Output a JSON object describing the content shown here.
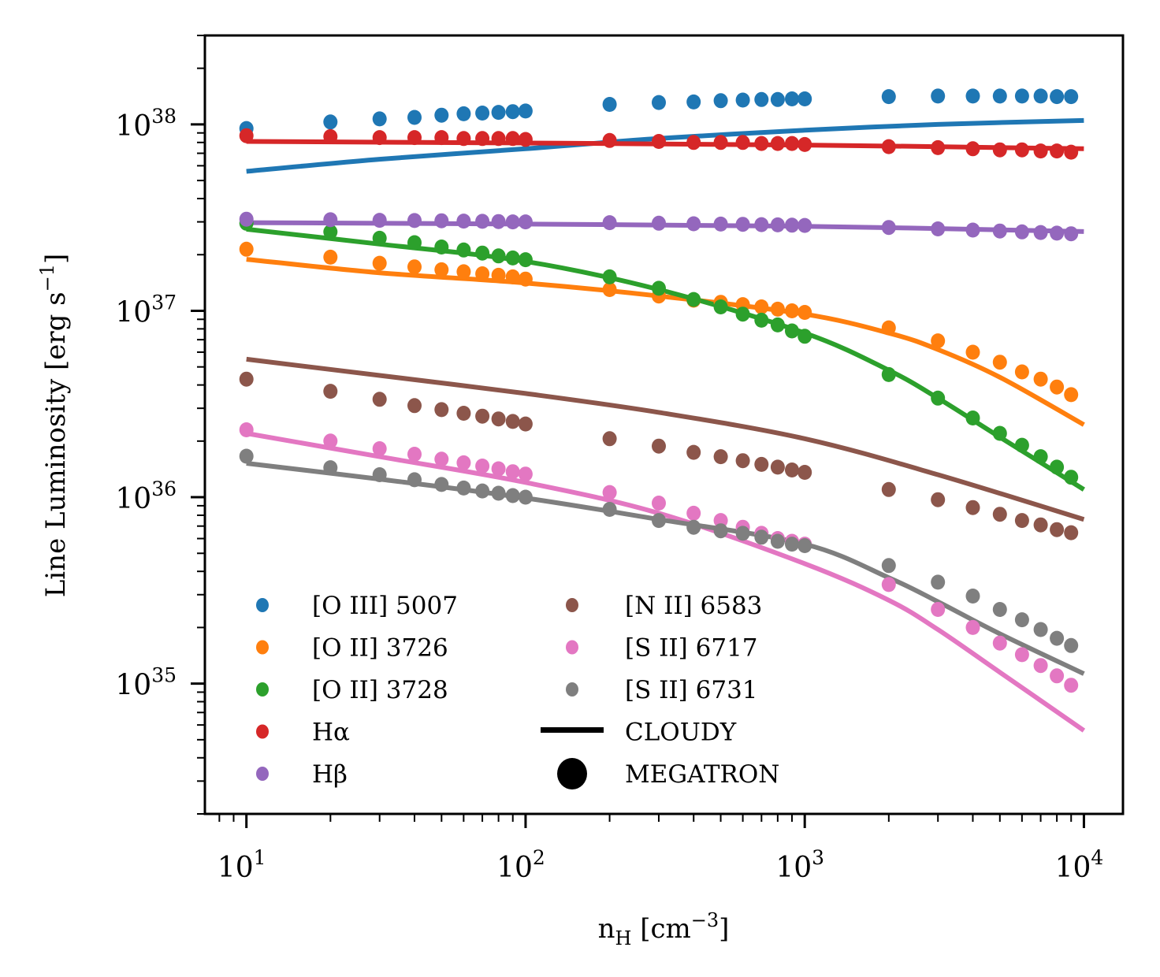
{
  "chart_data": {
    "type": "scatter",
    "title": "",
    "xlabel": "n_H [cm^-3]",
    "xlabel_parts": {
      "main": "n",
      "sub": "H",
      "bracket_open": " [cm",
      "sup": "−3",
      "bracket_close": "]"
    },
    "ylabel": "Line Luminosity [erg s^-1]",
    "ylabel_parts": {
      "main": "Line Luminosity [erg s",
      "sup": "−1",
      "close": "]"
    },
    "xscale": "log",
    "yscale": "log",
    "xlim": [
      7.1,
      13800
    ],
    "ylim": [
      2e+34,
      3e+38
    ],
    "grid": false,
    "legend_placement": "lower-left",
    "x_ticks": [
      {
        "value": 10,
        "base": "10",
        "exp": "1"
      },
      {
        "value": 100,
        "base": "10",
        "exp": "2"
      },
      {
        "value": 1000,
        "base": "10",
        "exp": "3"
      },
      {
        "value": 10000,
        "base": "10",
        "exp": "4"
      }
    ],
    "y_ticks": [
      {
        "value": 1e+35,
        "base": "10",
        "exp": "35"
      },
      {
        "value": 1e+36,
        "base": "10",
        "exp": "36"
      },
      {
        "value": 1e+37,
        "base": "10",
        "exp": "37"
      },
      {
        "value": 1e+38,
        "base": "10",
        "exp": "38"
      }
    ],
    "x": [
      10,
      20,
      30,
      40,
      50,
      60,
      70,
      80,
      90,
      100,
      200,
      300,
      400,
      500,
      600,
      700,
      800,
      900,
      1000,
      2000,
      3000,
      4000,
      5000,
      6000,
      7000,
      8000,
      9000
    ],
    "series": [
      {
        "name": "[O III] 5007",
        "color": "#1f77b4",
        "kind": "MEGATRON",
        "values": [
          9.5e+37,
          1.03e+38,
          1.07e+38,
          1.09e+38,
          1.12e+38,
          1.14e+38,
          1.15e+38,
          1.16e+38,
          1.17e+38,
          1.18e+38,
          1.28e+38,
          1.31e+38,
          1.32e+38,
          1.34e+38,
          1.35e+38,
          1.36e+38,
          1.36e+38,
          1.37e+38,
          1.37e+38,
          1.41e+38,
          1.42e+38,
          1.42e+38,
          1.42e+38,
          1.42e+38,
          1.42e+38,
          1.41e+38,
          1.41e+38
        ],
        "cloudy_x": [
          10,
          30,
          100,
          300,
          1000,
          3000,
          10000
        ],
        "cloudy": [
          5.6e+37,
          6.5e+37,
          7.4e+37,
          8.4e+37,
          9.3e+37,
          1e+38,
          1.05e+38
        ]
      },
      {
        "name": "[O II] 3726",
        "color": "#ff7f0e",
        "kind": "MEGATRON",
        "values": [
          2.14e+37,
          1.94e+37,
          1.8e+37,
          1.72e+37,
          1.66e+37,
          1.62e+37,
          1.58e+37,
          1.55e+37,
          1.52e+37,
          1.48e+37,
          1.3e+37,
          1.2e+37,
          1.14e+37,
          1.11e+37,
          1.08e+37,
          1.05e+37,
          1.02e+37,
          1e+37,
          9.8e+36,
          8.1e+36,
          6.9e+36,
          6e+36,
          5.3e+36,
          4.7e+36,
          4.3e+36,
          3.9e+36,
          3.55e+36
        ],
        "cloudy_x": [
          10,
          30,
          100,
          300,
          1000,
          2000,
          3000,
          5000,
          10000
        ],
        "cloudy": [
          1.89e+37,
          1.6e+37,
          1.41e+37,
          1.2e+37,
          9.6e+36,
          7.6e+36,
          6.2e+36,
          4.4e+36,
          2.45e+36
        ]
      },
      {
        "name": "[O II] 3728",
        "color": "#2ca02c",
        "kind": "MEGATRON",
        "values": [
          2.95e+37,
          2.65e+37,
          2.45e+37,
          2.32e+37,
          2.2e+37,
          2.12e+37,
          2.04e+37,
          1.97e+37,
          1.92e+37,
          1.88e+37,
          1.52e+37,
          1.32e+37,
          1.15e+37,
          1.05e+37,
          9.6e+36,
          8.9e+36,
          8.4e+36,
          7.8e+36,
          7.3e+36,
          4.55e+36,
          3.4e+36,
          2.66e+36,
          2.2e+36,
          1.9e+36,
          1.65e+36,
          1.45e+36,
          1.28e+36
        ],
        "cloudy_x": [
          10,
          30,
          100,
          300,
          1000,
          2000,
          3000,
          5000,
          10000
        ],
        "cloudy": [
          2.74e+37,
          2.28e+37,
          1.84e+37,
          1.3e+37,
          7.6e+36,
          4.8e+36,
          3.4e+36,
          2.1e+36,
          1.1e+36
        ]
      },
      {
        "name": "Hα",
        "color": "#d62728",
        "kind": "MEGATRON",
        "values": [
          8.7e+37,
          8.6e+37,
          8.5e+37,
          8.5e+37,
          8.5e+37,
          8.4e+37,
          8.4e+37,
          8.4e+37,
          8.4e+37,
          8.3e+37,
          8.2e+37,
          8.1e+37,
          8e+37,
          8e+37,
          8e+37,
          7.9e+37,
          7.9e+37,
          7.9e+37,
          7.8e+37,
          7.6e+37,
          7.5e+37,
          7.4e+37,
          7.3e+37,
          7.3e+37,
          7.2e+37,
          7.2e+37,
          7.1e+37
        ],
        "cloudy_x": [
          10,
          100,
          1000,
          10000
        ],
        "cloudy": [
          8.1e+37,
          7.95e+37,
          7.75e+37,
          7.4e+37
        ]
      },
      {
        "name": "Hβ",
        "color": "#9467bd",
        "kind": "MEGATRON",
        "values": [
          3.1e+37,
          3.08e+37,
          3.06e+37,
          3.05e+37,
          3.04e+37,
          3.03e+37,
          3.02e+37,
          3.01e+37,
          3e+37,
          3e+37,
          2.97e+37,
          2.95e+37,
          2.93e+37,
          2.92e+37,
          2.91e+37,
          2.9e+37,
          2.89e+37,
          2.88e+37,
          2.87e+37,
          2.8e+37,
          2.75e+37,
          2.71e+37,
          2.68e+37,
          2.65e+37,
          2.63e+37,
          2.61e+37,
          2.59e+37
        ],
        "cloudy_x": [
          10,
          100,
          1000,
          10000
        ],
        "cloudy": [
          2.97e+37,
          2.92e+37,
          2.84e+37,
          2.66e+37
        ]
      },
      {
        "name": "[N II] 6583",
        "color": "#8c564b",
        "kind": "MEGATRON",
        "values": [
          4.3e+36,
          3.7e+36,
          3.35e+36,
          3.1e+36,
          2.95e+36,
          2.82e+36,
          2.72e+36,
          2.63e+36,
          2.55e+36,
          2.47e+36,
          2.06e+36,
          1.88e+36,
          1.74e+36,
          1.65e+36,
          1.57e+36,
          1.5e+36,
          1.45e+36,
          1.4e+36,
          1.36e+36,
          1.1e+36,
          9.7e+35,
          8.8e+35,
          8.1e+35,
          7.5e+35,
          7.1e+35,
          6.7e+35,
          6.45e+35
        ],
        "cloudy_x": [
          10,
          30,
          100,
          300,
          1000,
          3000,
          10000
        ],
        "cloudy": [
          5.5e+36,
          4.5e+36,
          3.6e+36,
          2.85e+36,
          2.06e+36,
          1.32e+36,
          7.6e+35
        ]
      },
      {
        "name": "[S II] 6717",
        "color": "#e377c2",
        "kind": "MEGATRON",
        "values": [
          2.3e+36,
          2e+36,
          1.82e+36,
          1.7e+36,
          1.6e+36,
          1.53e+36,
          1.47e+36,
          1.42e+36,
          1.37e+36,
          1.33e+36,
          1.06e+36,
          9.3e+35,
          8.2e+35,
          7.5e+35,
          6.9e+35,
          6.4e+35,
          6e+35,
          5.8e+35,
          5.6e+35,
          3.4e+35,
          2.5e+35,
          2e+35,
          1.65e+35,
          1.43e+35,
          1.25e+35,
          1.1e+35,
          9.8e+34
        ],
        "cloudy_x": [
          10,
          30,
          100,
          300,
          1000,
          2000,
          3000,
          5000,
          10000
        ],
        "cloudy": [
          2.2e+36,
          1.65e+36,
          1.2e+36,
          8.2e+35,
          4.4e+35,
          2.8e+35,
          1.95e+35,
          1.15e+35,
          5.6e+34
        ]
      },
      {
        "name": "[S II] 6731",
        "color": "#7f7f7f",
        "kind": "MEGATRON",
        "values": [
          1.66e+36,
          1.44e+36,
          1.32e+36,
          1.24e+36,
          1.17e+36,
          1.12e+36,
          1.08e+36,
          1.05e+36,
          1.02e+36,
          1e+36,
          8.6e+35,
          7.5e+35,
          6.9e+35,
          6.6e+35,
          6.4e+35,
          6.1e+35,
          5.8e+35,
          5.6e+35,
          5.5e+35,
          4.3e+35,
          3.5e+35,
          2.95e+35,
          2.5e+35,
          2.2e+35,
          1.95e+35,
          1.75e+35,
          1.6e+35
        ],
        "cloudy_x": [
          10,
          30,
          100,
          300,
          1000,
          2000,
          3000,
          5000,
          10000
        ],
        "cloudy": [
          1.52e+36,
          1.25e+36,
          9.9e+35,
          7.6e+35,
          5.6e+35,
          3.7e+35,
          2.75e+35,
          1.85e+35,
          1.13e+35
        ]
      }
    ],
    "legend": {
      "entries": [
        {
          "label": "[O III] 5007",
          "color": "#1f77b4",
          "marker": "dot"
        },
        {
          "label": "[O II] 3726",
          "color": "#ff7f0e",
          "marker": "dot"
        },
        {
          "label": "[O II] 3728",
          "color": "#2ca02c",
          "marker": "dot"
        },
        {
          "label": "Hα",
          "color": "#d62728",
          "marker": "dot"
        },
        {
          "label": "Hβ",
          "color": "#9467bd",
          "marker": "dot"
        },
        {
          "label": "[N II] 6583",
          "color": "#8c564b",
          "marker": "dot"
        },
        {
          "label": "[S II] 6717",
          "color": "#e377c2",
          "marker": "dot"
        },
        {
          "label": "[S II] 6731",
          "color": "#7f7f7f",
          "marker": "dot"
        },
        {
          "label": "CLOUDY",
          "color": "#000000",
          "marker": "line"
        },
        {
          "label": "MEGATRON",
          "color": "#000000",
          "marker": "bigdot"
        }
      ]
    }
  }
}
